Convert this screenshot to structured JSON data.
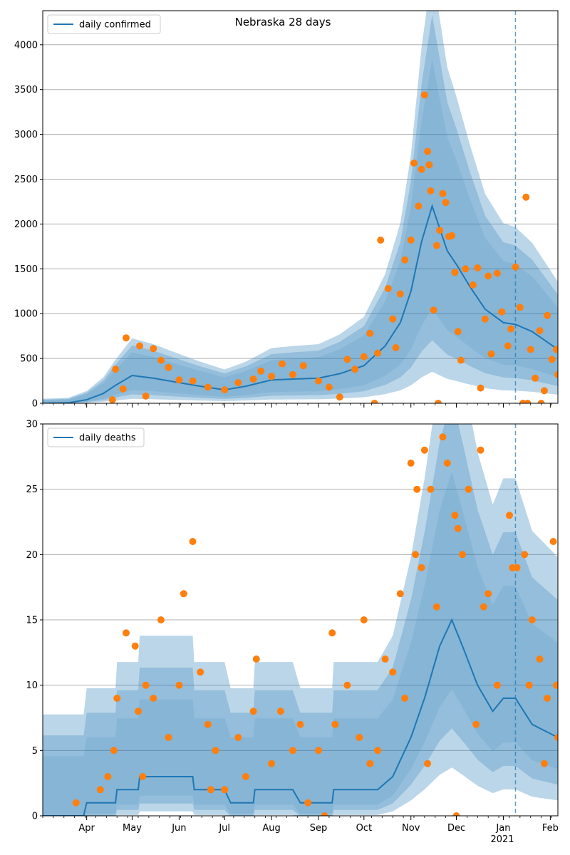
{
  "title": "Nebraska 28 days",
  "year_label": "2021",
  "month_labels": [
    "Apr",
    "May",
    "Jun",
    "Jul",
    "Aug",
    "Sep",
    "Oct",
    "Nov",
    "Dec",
    "Jan",
    "Feb"
  ],
  "colors": {
    "line": "#1f77b4",
    "points": "#ff7f0e",
    "band": "#1f77b4",
    "grid": "#b0b0b0",
    "vline": "#1f77b4"
  },
  "forecast_start": "2021-01-09",
  "chart_data": [
    {
      "type": "line",
      "legend": "daily confirmed",
      "legend_position": "top-left",
      "x_range": [
        "2020-03-03",
        "2021-02-06"
      ],
      "ylim": [
        0,
        4380
      ],
      "yticks": [
        0,
        500,
        1000,
        1500,
        2000,
        2500,
        3000,
        3500,
        4000
      ],
      "grid": "horizontal",
      "line_anchors": [
        [
          "2020-03-03",
          0
        ],
        [
          "2020-03-20",
          5
        ],
        [
          "2020-04-01",
          40
        ],
        [
          "2020-04-12",
          110
        ],
        [
          "2020-04-20",
          200
        ],
        [
          "2020-05-01",
          310
        ],
        [
          "2020-05-15",
          280
        ],
        [
          "2020-06-01",
          230
        ],
        [
          "2020-06-15",
          190
        ],
        [
          "2020-07-01",
          150
        ],
        [
          "2020-07-15",
          190
        ],
        [
          "2020-08-01",
          260
        ],
        [
          "2020-08-15",
          270
        ],
        [
          "2020-09-01",
          280
        ],
        [
          "2020-09-15",
          330
        ],
        [
          "2020-10-01",
          420
        ],
        [
          "2020-10-15",
          640
        ],
        [
          "2020-10-25",
          900
        ],
        [
          "2020-11-01",
          1250
        ],
        [
          "2020-11-08",
          1800
        ],
        [
          "2020-11-15",
          2200
        ],
        [
          "2020-11-20",
          1950
        ],
        [
          "2020-11-25",
          1700
        ],
        [
          "2020-12-01",
          1550
        ],
        [
          "2020-12-10",
          1300
        ],
        [
          "2020-12-20",
          1050
        ],
        [
          "2021-01-01",
          900
        ],
        [
          "2021-01-09",
          880
        ],
        [
          "2021-01-20",
          800
        ],
        [
          "2021-02-06",
          600
        ]
      ],
      "band_ratios": [
        0.84,
        0.68,
        0.52
      ],
      "band_alphas": [
        0.3,
        0.25,
        0.12
      ],
      "observations": [
        [
          "2020-04-27",
          730
        ],
        [
          "2020-05-06",
          640
        ],
        [
          "2020-05-15",
          610
        ],
        [
          "2020-05-20",
          480
        ],
        [
          "2020-05-10",
          80
        ],
        [
          "2020-04-25",
          160
        ],
        [
          "2020-04-20",
          380
        ],
        [
          "2020-04-18",
          40
        ],
        [
          "2020-05-25",
          400
        ],
        [
          "2020-06-01",
          260
        ],
        [
          "2020-06-10",
          250
        ],
        [
          "2020-06-20",
          180
        ],
        [
          "2020-07-01",
          150
        ],
        [
          "2020-07-10",
          230
        ],
        [
          "2020-07-20",
          270
        ],
        [
          "2020-07-25",
          360
        ],
        [
          "2020-08-01",
          300
        ],
        [
          "2020-08-08",
          440
        ],
        [
          "2020-08-15",
          320
        ],
        [
          "2020-08-22",
          420
        ],
        [
          "2020-09-01",
          250
        ],
        [
          "2020-09-08",
          180
        ],
        [
          "2020-09-15",
          70
        ],
        [
          "2020-09-20",
          490
        ],
        [
          "2020-09-25",
          380
        ],
        [
          "2020-10-01",
          520
        ],
        [
          "2020-10-05",
          780
        ],
        [
          "2020-10-10",
          560
        ],
        [
          "2020-10-12",
          1820
        ],
        [
          "2020-10-17",
          1280
        ],
        [
          "2020-10-20",
          940
        ],
        [
          "2020-10-22",
          620
        ],
        [
          "2020-10-25",
          1220
        ],
        [
          "2020-10-28",
          1600
        ],
        [
          "2020-11-01",
          1820
        ],
        [
          "2020-11-03",
          2680
        ],
        [
          "2020-11-06",
          2200
        ],
        [
          "2020-11-08",
          2610
        ],
        [
          "2020-11-10",
          3440
        ],
        [
          "2020-11-12",
          2810
        ],
        [
          "2020-11-13",
          2660
        ],
        [
          "2020-11-14",
          2370
        ],
        [
          "2020-11-16",
          1040
        ],
        [
          "2020-11-18",
          1760
        ],
        [
          "2020-11-20",
          1930
        ],
        [
          "2020-11-22",
          2340
        ],
        [
          "2020-11-24",
          2240
        ],
        [
          "2020-11-26",
          1860
        ],
        [
          "2020-11-30",
          1460
        ],
        [
          "2020-12-02",
          800
        ],
        [
          "2020-12-04",
          480
        ],
        [
          "2020-12-07",
          1500
        ],
        [
          "2020-12-12",
          1320
        ],
        [
          "2020-12-15",
          1510
        ],
        [
          "2020-12-17",
          170
        ],
        [
          "2020-12-20",
          940
        ],
        [
          "2020-12-24",
          550
        ],
        [
          "2020-12-28",
          1450
        ],
        [
          "2020-12-31",
          1020
        ],
        [
          "2021-01-04",
          640
        ],
        [
          "2021-01-09",
          1520
        ],
        [
          "2021-01-12",
          1070
        ],
        [
          "2021-01-16",
          2300
        ],
        [
          "2021-01-19",
          600
        ],
        [
          "2021-01-22",
          280
        ],
        [
          "2021-01-25",
          810
        ],
        [
          "2021-01-28",
          140
        ],
        [
          "2021-01-30",
          980
        ],
        [
          "2021-02-02",
          490
        ],
        [
          "2021-02-05",
          600
        ],
        [
          "2021-02-06",
          320
        ],
        [
          "2020-11-19",
          0
        ],
        [
          "2020-10-08",
          0
        ],
        [
          "2021-01-14",
          0
        ],
        [
          "2021-01-17",
          0
        ],
        [
          "2021-01-26",
          0
        ],
        [
          "2020-11-28",
          1870
        ],
        [
          "2020-12-22",
          1420
        ],
        [
          "2021-01-06",
          830
        ]
      ]
    },
    {
      "type": "line",
      "legend": "daily deaths",
      "legend_position": "top-left",
      "x_range": [
        "2020-03-03",
        "2021-02-06"
      ],
      "ylim": [
        0,
        30
      ],
      "yticks": [
        0,
        5,
        10,
        15,
        20,
        25,
        30
      ],
      "grid": "horizontal",
      "line_anchors": [
        [
          "2020-03-03",
          0
        ],
        [
          "2020-03-30",
          0
        ],
        [
          "2020-04-01",
          1
        ],
        [
          "2020-04-20",
          1
        ],
        [
          "2020-04-21",
          2
        ],
        [
          "2020-05-05",
          2
        ],
        [
          "2020-05-06",
          3
        ],
        [
          "2020-06-10",
          3
        ],
        [
          "2020-06-11",
          2
        ],
        [
          "2020-07-01",
          2
        ],
        [
          "2020-07-05",
          1
        ],
        [
          "2020-07-20",
          1
        ],
        [
          "2020-07-21",
          2
        ],
        [
          "2020-08-15",
          2
        ],
        [
          "2020-08-20",
          1
        ],
        [
          "2020-09-10",
          1
        ],
        [
          "2020-09-11",
          2
        ],
        [
          "2020-10-10",
          2
        ],
        [
          "2020-10-20",
          3
        ],
        [
          "2020-11-01",
          6
        ],
        [
          "2020-11-10",
          9
        ],
        [
          "2020-11-20",
          13
        ],
        [
          "2020-11-28",
          15
        ],
        [
          "2020-12-05",
          13
        ],
        [
          "2020-12-15",
          10
        ],
        [
          "2020-12-25",
          8
        ],
        [
          "2021-01-01",
          9
        ],
        [
          "2021-01-09",
          9
        ],
        [
          "2021-01-20",
          7
        ],
        [
          "2021-02-06",
          6
        ]
      ],
      "band_ratios": [
        0.72,
        0.52,
        0.32
      ],
      "band_alphas": [
        0.3,
        0.25,
        0.12
      ],
      "observations": [
        [
          "2020-04-27",
          14
        ],
        [
          "2020-05-03",
          13
        ],
        [
          "2020-05-05",
          8
        ],
        [
          "2020-05-10",
          10
        ],
        [
          "2020-05-15",
          9
        ],
        [
          "2020-05-20",
          15
        ],
        [
          "2020-05-25",
          6
        ],
        [
          "2020-06-01",
          10
        ],
        [
          "2020-06-04",
          17
        ],
        [
          "2020-06-10",
          21
        ],
        [
          "2020-06-15",
          11
        ],
        [
          "2020-06-20",
          7
        ],
        [
          "2020-06-25",
          5
        ],
        [
          "2020-07-01",
          2
        ],
        [
          "2020-07-10",
          6
        ],
        [
          "2020-07-15",
          3
        ],
        [
          "2020-07-20",
          8
        ],
        [
          "2020-07-22",
          12
        ],
        [
          "2020-08-01",
          4
        ],
        [
          "2020-08-07",
          8
        ],
        [
          "2020-08-15",
          5
        ],
        [
          "2020-08-20",
          7
        ],
        [
          "2020-09-01",
          5
        ],
        [
          "2020-09-10",
          14
        ],
        [
          "2020-09-12",
          7
        ],
        [
          "2020-09-20",
          10
        ],
        [
          "2020-09-28",
          6
        ],
        [
          "2020-10-01",
          15
        ],
        [
          "2020-10-10",
          5
        ],
        [
          "2020-10-15",
          12
        ],
        [
          "2020-10-20",
          11
        ],
        [
          "2020-10-25",
          17
        ],
        [
          "2020-10-28",
          9
        ],
        [
          "2020-11-01",
          27
        ],
        [
          "2020-11-04",
          20
        ],
        [
          "2020-11-05",
          25
        ],
        [
          "2020-11-08",
          19
        ],
        [
          "2020-11-10",
          28
        ],
        [
          "2020-11-14",
          25
        ],
        [
          "2020-11-18",
          16
        ],
        [
          "2020-11-22",
          29
        ],
        [
          "2020-11-25",
          27
        ],
        [
          "2020-11-30",
          23
        ],
        [
          "2020-12-02",
          22
        ],
        [
          "2020-12-05",
          20
        ],
        [
          "2020-12-09",
          25
        ],
        [
          "2020-12-14",
          7
        ],
        [
          "2020-12-17",
          28
        ],
        [
          "2020-12-19",
          16
        ],
        [
          "2020-12-22",
          17
        ],
        [
          "2020-12-28",
          10
        ],
        [
          "2021-01-05",
          23
        ],
        [
          "2021-01-07",
          19
        ],
        [
          "2021-01-10",
          19
        ],
        [
          "2021-01-15",
          20
        ],
        [
          "2021-01-20",
          15
        ],
        [
          "2021-01-25",
          12
        ],
        [
          "2021-01-30",
          9
        ],
        [
          "2021-02-03",
          21
        ],
        [
          "2021-02-05",
          10
        ],
        [
          "2021-02-06",
          6
        ],
        [
          "2020-04-10",
          2
        ],
        [
          "2020-04-15",
          3
        ],
        [
          "2020-04-19",
          5
        ],
        [
          "2020-04-21",
          9
        ],
        [
          "2020-05-08",
          3
        ],
        [
          "2020-06-22",
          2
        ],
        [
          "2020-08-25",
          1
        ],
        [
          "2020-09-05",
          0
        ],
        [
          "2020-10-05",
          4
        ],
        [
          "2020-11-12",
          4
        ],
        [
          "2020-12-01",
          0
        ],
        [
          "2021-01-18",
          10
        ],
        [
          "2021-01-28",
          4
        ],
        [
          "2020-03-25",
          1
        ]
      ]
    }
  ]
}
